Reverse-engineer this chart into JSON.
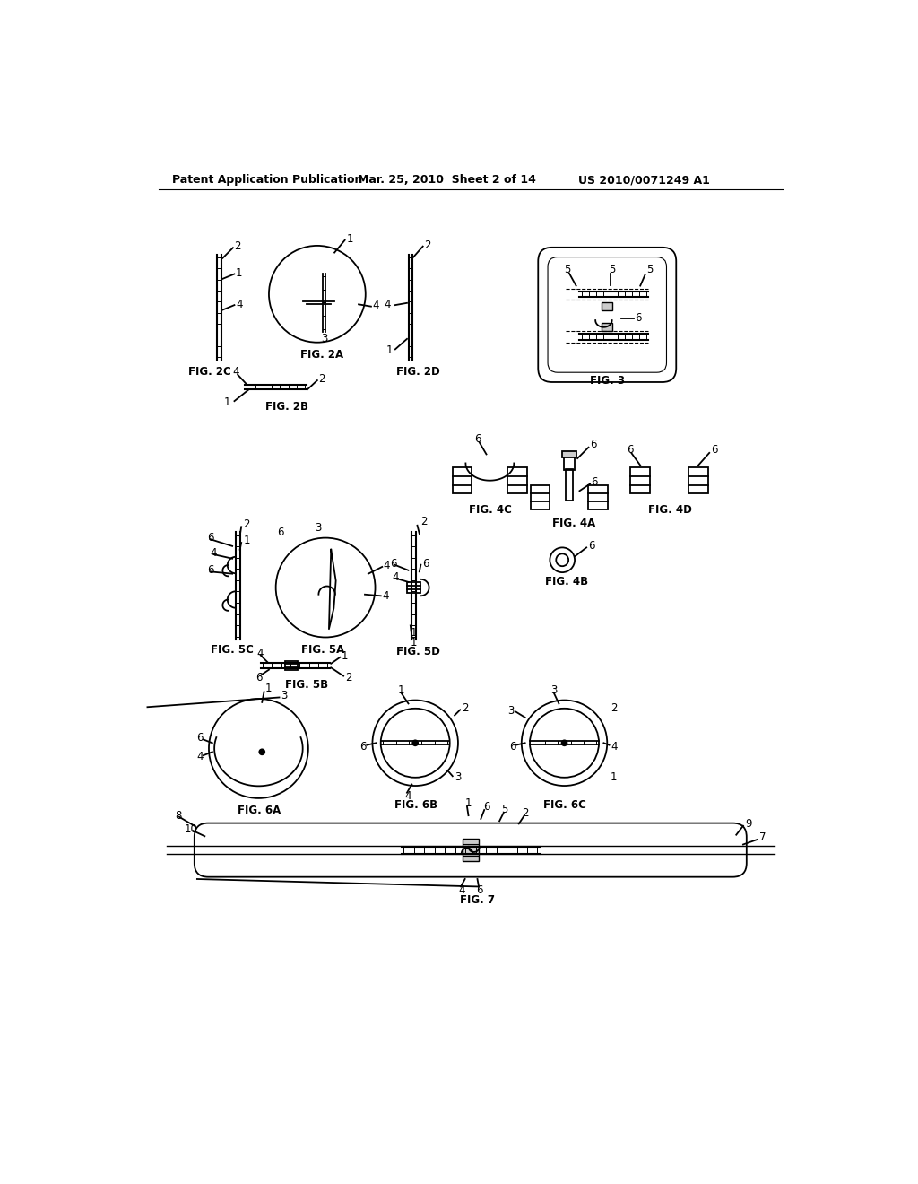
{
  "bg_color": "#ffffff",
  "header_text1": "Patent Application Publication",
  "header_text2": "Mar. 25, 2010  Sheet 2 of 14",
  "header_text3": "US 2010/0071249 A1",
  "line_color": "#000000",
  "lw": 1.3,
  "lw_thick": 2.0,
  "lw_rod": 1.5
}
